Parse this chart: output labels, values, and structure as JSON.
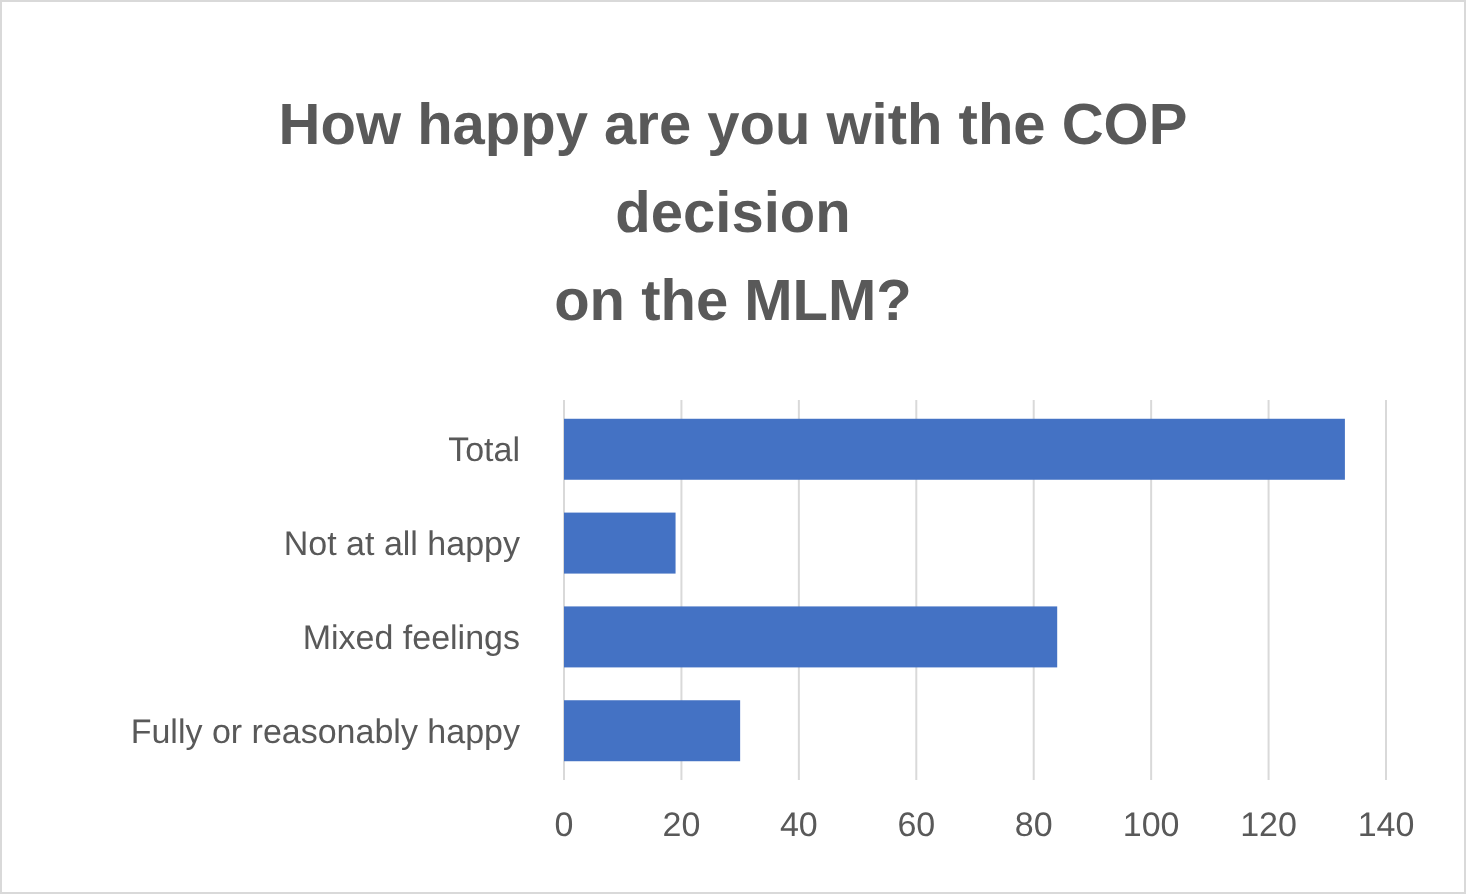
{
  "chart_data": {
    "type": "bar",
    "orientation": "horizontal",
    "title": "How happy are you with the COP decision\non the MLM?",
    "categories": [
      "Total",
      "Not at all happy",
      "Mixed feelings",
      "Fully or reasonably happy"
    ],
    "values": [
      133,
      19,
      84,
      30
    ],
    "color": "#4472c4",
    "xlim": [
      0,
      140
    ],
    "xticks": [
      0,
      20,
      40,
      60,
      80,
      100,
      120,
      140
    ],
    "grid": "x"
  }
}
